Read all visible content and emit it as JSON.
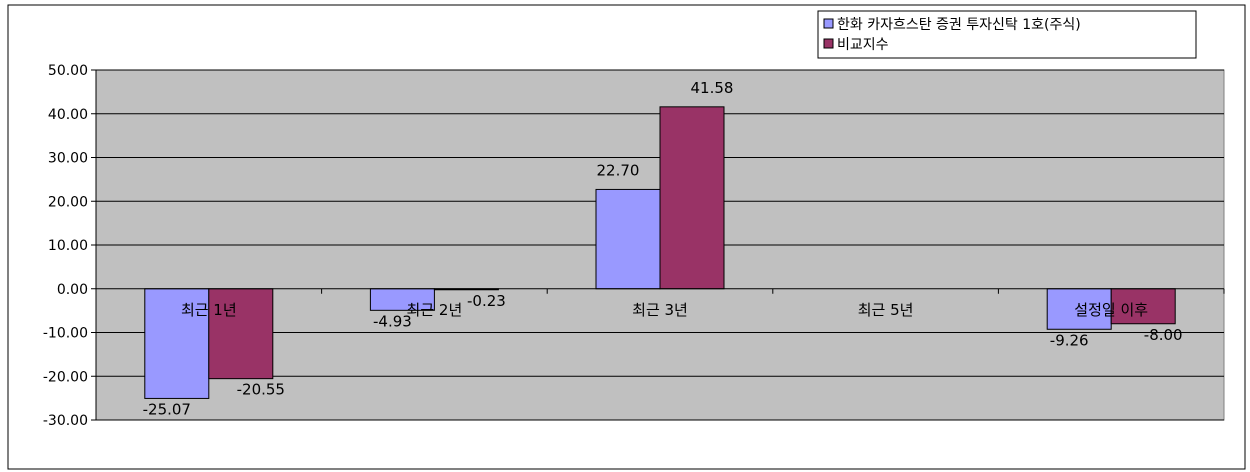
{
  "chart_data": {
    "type": "bar",
    "categories": [
      "최근 1년",
      "최근 2년",
      "최근 3년",
      "최근 5년",
      "설정일 이후"
    ],
    "series": [
      {
        "name": "한화 카자흐스탄 증권 투자신탁 1호(주식)",
        "color": "#9999ff",
        "values": [
          -25.07,
          -4.93,
          22.7,
          null,
          -9.26
        ]
      },
      {
        "name": "비교지수",
        "color": "#993366",
        "values": [
          -20.55,
          -0.23,
          41.58,
          null,
          -8.0
        ]
      }
    ],
    "data_labels": [
      [
        "-25.07",
        "-4.93",
        "22.70",
        "",
        "-9.26"
      ],
      [
        "-20.55",
        "-0.23",
        "41.58",
        "",
        "-8.00"
      ]
    ],
    "yticks": [
      "50.00",
      "40.00",
      "30.00",
      "20.00",
      "10.00",
      "0.00",
      "-10.00",
      "-20.00",
      "-30.00"
    ],
    "ylim": [
      -30,
      50
    ],
    "plot_background": "#c0c0c0",
    "grid": true,
    "legend_position": "top-right"
  }
}
